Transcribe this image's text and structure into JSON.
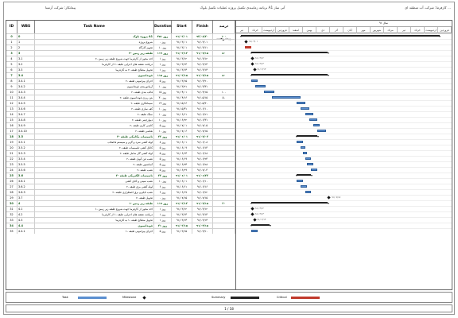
{
  "header": {
    "right": "کارفرما: شرکت آب منطقه ای ...",
    "center": "برنامه زمانبندی تکمیل پروژه عملیات تکمیل بلوک A1 آتی ساز",
    "left": "پیمانکار: شرکت آرمیتا"
  },
  "columns": [
    "ID",
    "WBS",
    "Task Name",
    "Duration",
    "Start",
    "Finish",
    "درصد پیشرفت"
  ],
  "rows": [
    {
      "id": "0",
      "wbs": "0",
      "name": "پروژه بلوک A1",
      "dur": "۴۵۱ روز",
      "start": "۹۱/۰۳/۰۱",
      "finish": "۹۲/۰۸/۲۰",
      "pct": "۱۰۰",
      "sum": true
    },
    {
      "id": "1",
      "wbs": "1",
      "name": "شروع پروژه",
      "dur": "۰ روز",
      "start": "۹۱/۰۳/۰۱",
      "finish": "۹۱/۰۳/۰۱",
      "pct": "",
      "sum": false
    },
    {
      "id": "2",
      "wbs": "2",
      "name": "تجهیز کارگاه",
      "dur": "۱۰ روز",
      "start": "۹۱/۰۳/۰۱",
      "finish": "۹۱/۰۳/۱۱",
      "pct": "",
      "sum": false
    },
    {
      "id": "3",
      "wbs": "3",
      "name": "طبقه زیر زمین -۲",
      "dur": "۱۱۹ روز",
      "start": "۹۱/۰۳/۱۲",
      "finish": "۹۱/۰۷/۱۵",
      "pct": "۵۰",
      "sum": true
    },
    {
      "id": "4",
      "wbs": "3.1",
      "name": "اخذ مجوز از کارفرما جهت شروع طبقه زیر زمین -۲",
      "dur": "۱ روز",
      "start": "۹۱/۰۳/۱۲",
      "finish": "۹۱/۰۳/۱۲",
      "pct": "",
      "sum": false
    },
    {
      "id": "5",
      "wbs": "3.2",
      "name": "دریافت نقشه های اجرایی طبقه -۲ از کارفرما",
      "dur": "۱ روز",
      "start": "۹۱/۰۳/۱۳",
      "finish": "۹۱/۰۳/۱۳",
      "pct": "",
      "sum": false
    },
    {
      "id": "6",
      "wbs": "3.3",
      "name": "تحویل مصالح طبقه -۲ به کارفرما",
      "dur": "۱ روز",
      "start": "۹۱/۰۳/۱۴",
      "finish": "۹۱/۰۳/۱۴",
      "pct": "",
      "sum": false
    },
    {
      "id": "7",
      "wbs": "3.4",
      "name": "فونداسیون",
      "dur": "۱۱۵ روز",
      "start": "۹۱/۰۳/۱۵",
      "finish": "۹۱/۰۷/۱۵",
      "pct": "۵۰",
      "sum": true
    },
    {
      "id": "8",
      "wbs": "3.4.1",
      "name": "اجرای پیرامونی طبقه -۲",
      "dur": "۵ روز",
      "start": "۹۱/۰۳/۱۵",
      "finish": "۹۱/۰۳/۲۰",
      "pct": "",
      "sum": false
    },
    {
      "id": "9",
      "wbs": "3.4.2",
      "name": "آرماتوربندی فونداسیون",
      "dur": "۱۰ روز",
      "start": "۹۱/۰۳/۲۱",
      "finish": "۹۱/۰۳/۳۱",
      "pct": "",
      "sum": false
    },
    {
      "id": "10",
      "wbs": "3.4.3",
      "name": "قالب بندی طبقه -۲",
      "dur": "۱۵ روز",
      "start": "۹۱/۰۴/۰۱",
      "finish": "۹۱/۰۴/۱۵",
      "pct": "۱۰۰",
      "sum": false
    },
    {
      "id": "11",
      "wbs": "3.4.4",
      "name": "بتن ریزی فونداسیون طبقه -۲",
      "dur": "۳۰ روز",
      "start": "۹۱/۰۴/۱۶",
      "finish": "۹۱/۰۵/۱۵",
      "pct": "۵۰",
      "sum": false
    },
    {
      "id": "12",
      "wbs": "3.4.5",
      "name": "سیمانکاری طبقه -۲",
      "dur": "۱۴ روز",
      "start": "۹۱/۰۵/۱۶",
      "finish": "۹۱/۰۵/۳۰",
      "pct": "",
      "sum": false
    },
    {
      "id": "13",
      "wbs": "3.4.6",
      "name": "کف سازی طبقه -۲",
      "dur": "۱۰ روز",
      "start": "۹۱/۰۵/۳۱",
      "finish": "۹۱/۰۶/۱۰",
      "pct": "",
      "sum": false
    },
    {
      "id": "14",
      "wbs": "3.4.7",
      "name": "سنگ طبقه -۲",
      "dur": "۱۰ روز",
      "start": "۹۱/۰۶/۱۱",
      "finish": "۹۱/۰۶/۲۱",
      "pct": "",
      "sum": false
    },
    {
      "id": "15",
      "wbs": "3.4.8",
      "name": "دیوارچینی طبقه -۲",
      "dur": "۱۰ روز",
      "start": "۹۱/۰۶/۲۲",
      "finish": "۹۱/۰۶/۳۱",
      "pct": "",
      "sum": false
    },
    {
      "id": "16",
      "wbs": "3.4.9",
      "name": "کاشی کاری طبقه -۲",
      "dur": "۵ روز",
      "start": "۹۱/۰۷/۰۱",
      "finish": "۹۱/۰۷/۰۵",
      "pct": "",
      "sum": false
    },
    {
      "id": "17",
      "wbs": "3.4.10",
      "name": "نقاشی طبقه -۲",
      "dur": "۱۰ روز",
      "start": "۹۱/۰۷/۰۶",
      "finish": "۹۱/۰۷/۱۵",
      "pct": "",
      "sum": false
    },
    {
      "id": "18",
      "wbs": "3.5",
      "name": "تاسیسات مکانیکی طبقه -۲",
      "dur": "۳۲ روز",
      "start": "۹۱/۰۶/۰۱",
      "finish": "۹۱/۰۷/۰۳",
      "pct": "",
      "sum": true
    },
    {
      "id": "19",
      "wbs": "3.5.1",
      "name": "لوله کشی سرد و گرم و سیستم فاضلاب",
      "dur": "۸ روز",
      "start": "۹۱/۰۶/۰۱",
      "finish": "۹۱/۰۶/۰۸",
      "pct": "",
      "sum": false
    },
    {
      "id": "20",
      "wbs": "3.5.2",
      "name": "کانال کشی تاسیسات طبقه -۲",
      "dur": "۵ روز",
      "start": "۹۱/۰۶/۰۹",
      "finish": "۹۱/۰۶/۱۳",
      "pct": "",
      "sum": false
    },
    {
      "id": "21",
      "wbs": "3.5.3",
      "name": "لوله کشی گاز شامل طبقه -۲",
      "dur": "۵ روز",
      "start": "۹۱/۰۶/۱۴",
      "finish": "۹۱/۰۶/۱۸",
      "pct": "",
      "sum": false
    },
    {
      "id": "22",
      "wbs": "3.5.4",
      "name": "نصب فن کویل طبقه -۲",
      "dur": "۵ روز",
      "start": "۹۱/۰۶/۱۹",
      "finish": "۹۱/۰۶/۲۳",
      "pct": "",
      "sum": false
    },
    {
      "id": "23",
      "wbs": "3.5.5",
      "name": "آسانسور طبقه -۲",
      "dur": "۵ روز",
      "start": "۹۱/۰۶/۲۴",
      "finish": "۹۱/۰۶/۲۸",
      "pct": "",
      "sum": false
    },
    {
      "id": "24",
      "wbs": "3.5.6",
      "name": "نصب طبقه -۲",
      "dur": "۵ روز",
      "start": "۹۱/۰۶/۲۹",
      "finish": "۹۱/۰۷/۰۳",
      "pct": "",
      "sum": false
    },
    {
      "id": "25",
      "wbs": "3.6",
      "name": "تاسیسات الکتریکی طبقه -۲",
      "dur": "۲۲ روز",
      "start": "۹۱/۰۶/۰۱",
      "finish": "۹۱/۰۶/۲۲",
      "pct": "",
      "sum": true
    },
    {
      "id": "26",
      "wbs": "3.6.1",
      "name": "نصب سینی و کابل کشی",
      "dur": "۱۰ روز",
      "start": "۹۱/۰۶/۰۱",
      "finish": "۹۱/۰۶/۱۰",
      "pct": "",
      "sum": false
    },
    {
      "id": "27",
      "wbs": "3.6.2",
      "name": "لوله کشی برق طبقه -۲",
      "dur": "۶ روز",
      "start": "۹۱/۰۶/۱۱",
      "finish": "۹۱/۰۶/۱۶",
      "pct": "",
      "sum": false
    },
    {
      "id": "28",
      "wbs": "3.6.3",
      "name": "نصب تابلو و برق اضطراری طبقه -۲",
      "dur": "۶ روز",
      "start": "۹۱/۰۶/۱۷",
      "finish": "۹۱/۰۶/۲۲",
      "pct": "",
      "sum": false
    },
    {
      "id": "29",
      "wbs": "3.7",
      "name": "تحویل طبقه -۲",
      "dur": "۰ روز",
      "start": "۹۱/۰۷/۱۵",
      "finish": "۹۱/۰۷/۱۵",
      "pct": "",
      "sum": false
    },
    {
      "id": "30",
      "wbs": "4",
      "name": "طبقه زیر زمین -۱",
      "dur": "۱۱۹ روز",
      "start": "۹۱/۰۳/۱۲",
      "finish": "۹۱/۰۷/۱۵",
      "pct": "۲۰",
      "sum": true
    },
    {
      "id": "31",
      "wbs": "4.1",
      "name": "اخذ مجوز از کارفرما جهت شروع طبقه زیر زمین -۱",
      "dur": "۱ روز",
      "start": "۹۱/۰۳/۱۲",
      "finish": "۹۱/۰۳/۱۲",
      "pct": "",
      "sum": false
    },
    {
      "id": "32",
      "wbs": "4.2",
      "name": "دریافت نقشه های اجرایی طبقه -۱ از کارفرما",
      "dur": "۱ روز",
      "start": "۹۱/۰۳/۱۳",
      "finish": "۹۱/۰۳/۱۳",
      "pct": "",
      "sum": false
    },
    {
      "id": "33",
      "wbs": "4.3",
      "name": "تحویل مصالح طبقه -۱ به کارفرما",
      "dur": "۱ روز",
      "start": "۹۱/۰۳/۱۴",
      "finish": "۹۱/۰۳/۱۴",
      "pct": "",
      "sum": false
    },
    {
      "id": "34",
      "wbs": "4.4",
      "name": "فونداسیون",
      "dur": "۳۱ روز",
      "start": "۹۱/۰۳/۱۵",
      "finish": "۹۱/۰۴/۱۵",
      "pct": "",
      "sum": true
    },
    {
      "id": "35",
      "wbs": "4.4.1",
      "name": "اجرای پیرامونی طبقه -۱",
      "dur": "۵ روز",
      "start": "۹۱/۰۳/۱۵",
      "finish": "۹۱/۰۳/۲۰",
      "pct": "",
      "sum": false
    }
  ],
  "gantt": {
    "year_label": "سال ۹۱",
    "months": [
      "فروردین",
      "اردیبهشت",
      "خرداد",
      "تیر",
      "مرداد",
      "شهریور",
      "مهر",
      "آبان",
      "آذر",
      "دی",
      "بهمن",
      "اسفند",
      "فروردین",
      "اردیبهشت",
      "خرداد",
      "تیر"
    ],
    "bars": [
      {
        "row": 0,
        "type": "summary",
        "start": 0.0,
        "end": 0.96
      },
      {
        "row": 2,
        "type": "critical",
        "start": 0.02,
        "end": 0.05
      },
      {
        "row": 3,
        "type": "summary",
        "start": 0.05,
        "end": 0.42
      },
      {
        "row": 7,
        "type": "summary",
        "start": 0.05,
        "end": 0.42
      },
      {
        "row": 8,
        "type": "task",
        "start": 0.05,
        "end": 0.08
      },
      {
        "row": 9,
        "type": "task",
        "start": 0.07,
        "end": 0.12
      },
      {
        "row": 10,
        "type": "task",
        "start": 0.11,
        "end": 0.16
      },
      {
        "row": 11,
        "type": "task",
        "start": 0.15,
        "end": 0.29
      },
      {
        "row": 12,
        "type": "task",
        "start": 0.27,
        "end": 0.31
      },
      {
        "row": 13,
        "type": "task",
        "start": 0.29,
        "end": 0.33
      },
      {
        "row": 14,
        "type": "task",
        "start": 0.31,
        "end": 0.35
      },
      {
        "row": 15,
        "type": "task",
        "start": 0.33,
        "end": 0.37
      },
      {
        "row": 16,
        "type": "task",
        "start": 0.35,
        "end": 0.38
      },
      {
        "row": 17,
        "type": "task",
        "start": 0.37,
        "end": 0.41
      },
      {
        "row": 18,
        "type": "summary",
        "start": 0.27,
        "end": 0.37
      },
      {
        "row": 19,
        "type": "task",
        "start": 0.27,
        "end": 0.3
      },
      {
        "row": 20,
        "type": "task",
        "start": 0.29,
        "end": 0.31
      },
      {
        "row": 21,
        "type": "task",
        "start": 0.3,
        "end": 0.32
      },
      {
        "row": 22,
        "type": "task",
        "start": 0.31,
        "end": 0.34
      },
      {
        "row": 23,
        "type": "task",
        "start": 0.32,
        "end": 0.35
      },
      {
        "row": 24,
        "type": "task",
        "start": 0.34,
        "end": 0.37
      },
      {
        "row": 25,
        "type": "summary",
        "start": 0.27,
        "end": 0.34
      },
      {
        "row": 26,
        "type": "task",
        "start": 0.27,
        "end": 0.3
      },
      {
        "row": 27,
        "type": "task",
        "start": 0.29,
        "end": 0.32
      },
      {
        "row": 28,
        "type": "task",
        "start": 0.31,
        "end": 0.34
      },
      {
        "row": 30,
        "type": "summary",
        "start": 0.05,
        "end": 0.42
      },
      {
        "row": 34,
        "type": "summary",
        "start": 0.05,
        "end": 0.14
      },
      {
        "row": 35,
        "type": "task",
        "start": 0.05,
        "end": 0.08
      }
    ],
    "milestones": [
      {
        "row": 1,
        "at": 0.02,
        "label": "۹۱/۰۳/۰۱"
      },
      {
        "row": 4,
        "at": 0.05,
        "label": "۹۱/۰۳/۱۲"
      },
      {
        "row": 5,
        "at": 0.05,
        "label": "۹۱/۰۳/۱۳"
      },
      {
        "row": 6,
        "at": 0.06,
        "label": "۹۱/۰۳/۱۴"
      },
      {
        "row": 29,
        "at": 0.42,
        "label": "۹۱/۰۷/۱۵"
      },
      {
        "row": 31,
        "at": 0.05,
        "label": "۹۱/۰۳/۱۲"
      },
      {
        "row": 32,
        "at": 0.05,
        "label": "۹۱/۰۳/۱۳"
      },
      {
        "row": 33,
        "at": 0.06,
        "label": "۹۱/۰۳/۱۴"
      }
    ],
    "colors": {
      "task": "#5b8fd0",
      "summary": "#222222",
      "critical": "#c0392b",
      "milestone": "#111111"
    }
  },
  "legend": {
    "task": "Task",
    "milestone": "Milestone",
    "summary": "Summary",
    "critical": "Critical"
  },
  "footer": {
    "page": "1 / 18"
  }
}
